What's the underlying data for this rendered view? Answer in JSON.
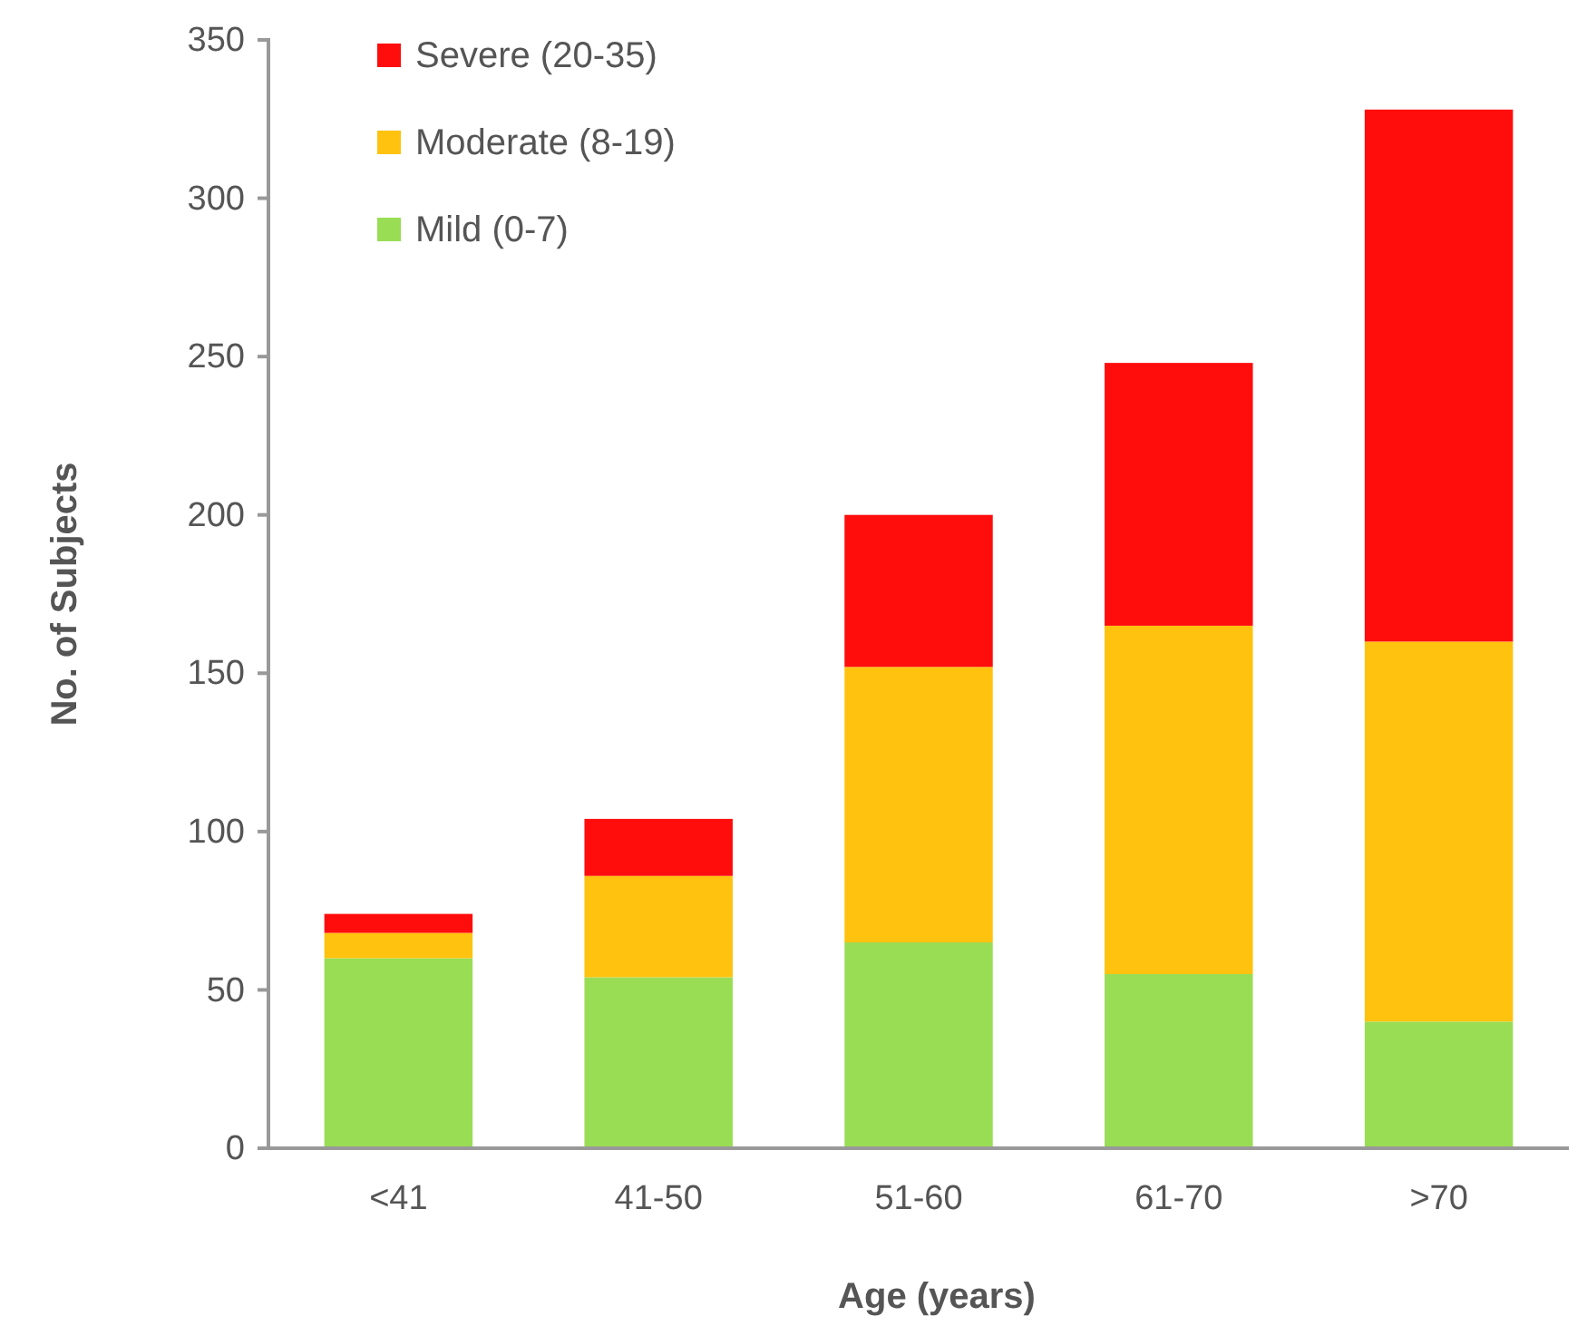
{
  "chart_data": {
    "type": "bar",
    "stacked": true,
    "xlabel": "Age (years)",
    "ylabel": "No. of Subjects",
    "categories": [
      "<41",
      "41-50",
      "51-60",
      "61-70",
      ">70"
    ],
    "series": [
      {
        "name": "Mild (0-7)",
        "color": "#99dd55",
        "values": [
          60,
          54,
          65,
          55,
          40
        ]
      },
      {
        "name": "Moderate (8-19)",
        "color": "#ffc20e",
        "values": [
          8,
          32,
          87,
          110,
          120
        ]
      },
      {
        "name": "Severe (20-35)",
        "color": "#ff0d0d",
        "values": [
          6,
          18,
          48,
          83,
          168
        ]
      }
    ],
    "ylim": [
      0,
      350
    ],
    "yticks": [
      0,
      50,
      100,
      150,
      200,
      250,
      300,
      350
    ],
    "grid": false,
    "legend": "top left"
  }
}
